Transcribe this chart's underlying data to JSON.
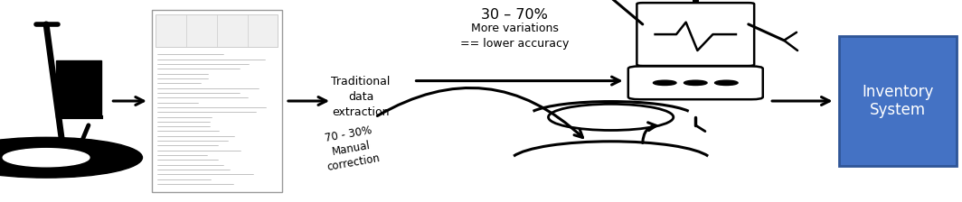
{
  "background_color": "#ffffff",
  "inventory_box_color": "#4472C4",
  "inventory_box_text": "Inventory\nSystem",
  "inventory_box_text_color": "#ffffff",
  "title_text": "30 – 70%",
  "subtitle_text": "More variations\n== lower accuracy",
  "traditional_text": "Traditional\ndata\nextraction",
  "manual_text": "70 - 30%\nManual\ncorrection"
}
